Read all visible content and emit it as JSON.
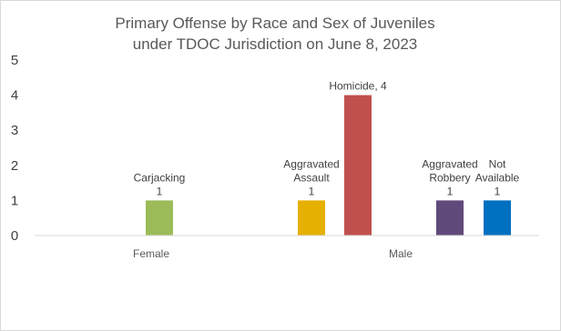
{
  "chart_data": {
    "type": "bar",
    "title": [
      "Primary Offense by Race and Sex of Juveniles",
      "under TDOC Jurisdiction on June 8, 2023"
    ],
    "xlabel": "",
    "ylabel": "",
    "ylim": [
      0,
      5
    ],
    "yticks": [
      "0",
      "1",
      "2",
      "3",
      "4",
      "5"
    ],
    "grid": false,
    "legend": "none",
    "groups": [
      {
        "name": "Female",
        "bars": [
          {
            "label": [
              "Carjacking",
              "1"
            ],
            "value": 1,
            "color": "#9bbb59"
          }
        ]
      },
      {
        "name": "Male",
        "bars": [
          {
            "label": [
              "Aggravated",
              "Assault",
              "1"
            ],
            "value": 1,
            "color": "#e6b000"
          },
          {
            "label": [
              "Homicide, 4"
            ],
            "value": 4,
            "color": "#c0504d"
          },
          {
            "label": [
              "Aggravated",
              "Robbery",
              "1"
            ],
            "value": 1,
            "color": "#604a7b"
          },
          {
            "label": [
              "Not",
              "Available",
              "1"
            ],
            "value": 1,
            "color": "#0070c0"
          }
        ]
      }
    ]
  }
}
